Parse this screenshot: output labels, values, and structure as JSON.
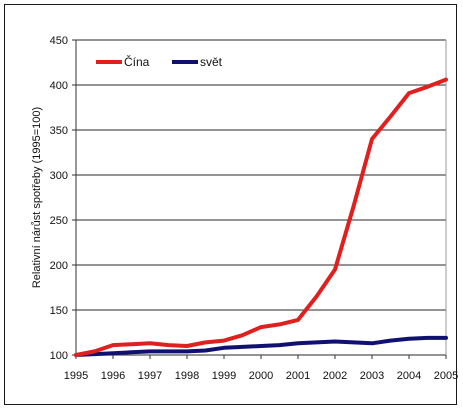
{
  "chart_data": {
    "type": "line",
    "title": "",
    "xlabel": "",
    "ylabel": "Relativní nárůst spotřeby (1995=100)",
    "categories": [
      "1995",
      "1996",
      "1997",
      "1998",
      "1999",
      "2000",
      "2001",
      "2002",
      "2003",
      "2004",
      "2005"
    ],
    "ylim": [
      100,
      450
    ],
    "yticks": [
      100,
      150,
      200,
      250,
      300,
      350,
      400,
      450
    ],
    "grid": true,
    "legend_position": "top-left",
    "series": [
      {
        "name": "Čína",
        "color": "#e0201f",
        "x": [
          1995,
          1995.5,
          1996,
          1996.5,
          1997,
          1997.5,
          1998,
          1998.5,
          1999,
          1999.5,
          2000,
          2000.5,
          2001,
          2001.5,
          2002,
          2002.5,
          2003,
          2003.5,
          2004,
          2004.5,
          2005
        ],
        "values": [
          100,
          104,
          111,
          112,
          113,
          111,
          110,
          114,
          116,
          122,
          131,
          134,
          139,
          165,
          195,
          265,
          340,
          365,
          391,
          398,
          406
        ]
      },
      {
        "name": "svět",
        "color": "#101070",
        "x": [
          1995,
          1995.5,
          1996,
          1996.5,
          1997,
          1997.5,
          1998,
          1998.5,
          1999,
          1999.5,
          2000,
          2000.5,
          2001,
          2001.5,
          2002,
          2002.5,
          2003,
          2003.5,
          2004,
          2004.5,
          2005
        ],
        "values": [
          100,
          101,
          102,
          103,
          104,
          104,
          104,
          105,
          108,
          109,
          110,
          111,
          113,
          114,
          115,
          114,
          113,
          116,
          118,
          119,
          119
        ]
      }
    ]
  }
}
